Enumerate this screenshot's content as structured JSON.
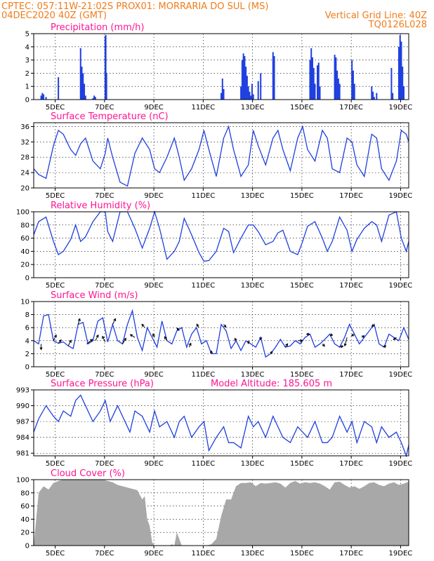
{
  "header": {
    "line1_left": "CPTEC:  057:11W-21:02S  PROX01: MORRARIA DO SUL (MS)",
    "line2_left": "04DEC2020 40Z (GMT)",
    "line2_right": "Vertical Grid Line: 40Z",
    "line3_right": "TQ0126L028"
  },
  "colors": {
    "header": "#f07c1a",
    "title": "#ff1493",
    "line": "#1f3fe0",
    "cloud": "#a8a8a8",
    "arrow": "#000000"
  },
  "x_ticks": [
    "5DEC",
    "7DEC",
    "9DEC",
    "11DEC",
    "13DEC",
    "15DEC",
    "17DEC",
    "19DEC"
  ],
  "chart_data": [
    {
      "type": "bar",
      "title": "Precipitation (mm/h)",
      "ylim": [
        0,
        5
      ],
      "yticks": [
        0,
        1,
        2,
        3,
        4,
        5
      ],
      "x": [
        4.1,
        4.15,
        4.2,
        4.3,
        4.8,
        5.7,
        5.75,
        5.8,
        5.85,
        5.9,
        6.2,
        6.25,
        6.3,
        6.7,
        6.72,
        6.75,
        11.4,
        11.45,
        11.5,
        12.2,
        12.25,
        12.3,
        12.35,
        12.4,
        12.45,
        12.5,
        12.55,
        12.6,
        12.65,
        12.7,
        12.9,
        13.0,
        13.5,
        13.55,
        15.0,
        15.05,
        15.1,
        15.15,
        15.2,
        15.3,
        15.35,
        15.4,
        16.0,
        16.05,
        16.1,
        16.15,
        16.2,
        16.7,
        16.75,
        16.8,
        17.5,
        17.55,
        17.6,
        17.7,
        18.3,
        18.35,
        18.6,
        18.65,
        18.7,
        18.75,
        18.8
      ],
      "values": [
        0.3,
        0.5,
        0.4,
        0.2,
        1.7,
        3.9,
        2.5,
        2.0,
        1.2,
        0.3,
        0.1,
        0.3,
        0.2,
        4.8,
        4.9,
        2.0,
        0.5,
        1.6,
        0.8,
        1.0,
        3.0,
        3.5,
        3.3,
        2.5,
        1.8,
        1.0,
        0.6,
        0.3,
        1.2,
        0.4,
        1.4,
        2.0,
        3.6,
        3.3,
        3.0,
        3.9,
        3.2,
        2.4,
        1.2,
        2.6,
        2.8,
        1.0,
        3.4,
        3.2,
        2.2,
        1.6,
        1.2,
        3.0,
        2.2,
        1.2,
        1.0,
        0.6,
        0.2,
        0.5,
        2.4,
        0.5,
        4.0,
        4.9,
        4.4,
        2.5,
        1.0
      ]
    },
    {
      "type": "line",
      "title": "Surface Temperature (nC)",
      "ylim": [
        20,
        37
      ],
      "yticks": [
        20,
        24,
        28,
        32,
        36
      ],
      "x": [
        3.8,
        4.0,
        4.3,
        4.6,
        4.8,
        5.0,
        5.3,
        5.5,
        5.7,
        5.9,
        6.2,
        6.5,
        6.7,
        6.8,
        7.0,
        7.3,
        7.6,
        7.9,
        8.2,
        8.5,
        8.7,
        8.9,
        9.2,
        9.5,
        9.7,
        9.9,
        10.2,
        10.5,
        10.7,
        10.9,
        11.2,
        11.5,
        11.7,
        11.9,
        12.2,
        12.5,
        12.7,
        12.9,
        13.2,
        13.5,
        13.7,
        13.9,
        14.2,
        14.5,
        14.7,
        14.9,
        15.2,
        15.5,
        15.7,
        15.9,
        16.2,
        16.5,
        16.7,
        16.9,
        17.2,
        17.5,
        17.7,
        17.9,
        18.2,
        18.5,
        18.7,
        18.9,
        19.0
      ],
      "values": [
        25,
        23.5,
        22.5,
        31,
        35,
        34,
        30,
        28.5,
        31.5,
        33,
        27,
        25,
        29,
        33,
        28,
        21.5,
        20.5,
        29,
        33,
        30,
        25,
        24,
        28,
        33,
        28,
        22,
        25,
        30,
        35,
        30,
        23,
        33,
        36,
        30,
        23,
        26,
        35,
        31,
        26,
        33,
        35,
        30,
        24.5,
        33,
        36,
        30,
        27,
        35,
        33,
        25,
        24,
        33,
        32,
        26,
        23,
        34,
        33,
        25,
        22,
        27,
        35,
        34,
        32
      ]
    },
    {
      "type": "line",
      "title": "Relative Humidity (%)",
      "ylim": [
        0,
        100
      ],
      "yticks": [
        0,
        20,
        40,
        60,
        80,
        100
      ],
      "x": [
        3.8,
        4.0,
        4.3,
        4.6,
        4.8,
        5.0,
        5.3,
        5.5,
        5.7,
        5.9,
        6.2,
        6.5,
        6.7,
        6.8,
        7.0,
        7.3,
        7.6,
        7.9,
        8.2,
        8.5,
        8.7,
        8.9,
        9.2,
        9.5,
        9.7,
        9.9,
        10.2,
        10.5,
        10.7,
        10.9,
        11.2,
        11.5,
        11.7,
        11.9,
        12.2,
        12.5,
        12.7,
        12.9,
        13.2,
        13.5,
        13.7,
        13.9,
        14.2,
        14.5,
        14.7,
        14.9,
        15.2,
        15.5,
        15.7,
        15.9,
        16.2,
        16.5,
        16.7,
        16.9,
        17.2,
        17.5,
        17.7,
        17.9,
        18.2,
        18.5,
        18.7,
        18.9,
        19.0
      ],
      "values": [
        65,
        85,
        92,
        55,
        35,
        40,
        58,
        80,
        55,
        62,
        85,
        100,
        100,
        70,
        55,
        100,
        100,
        75,
        45,
        75,
        100,
        75,
        28,
        40,
        55,
        90,
        65,
        38,
        25,
        26,
        40,
        75,
        70,
        38,
        60,
        80,
        80,
        70,
        50,
        55,
        68,
        72,
        40,
        35,
        55,
        78,
        85,
        60,
        40,
        55,
        92,
        72,
        40,
        58,
        75,
        85,
        80,
        55,
        95,
        100,
        60,
        40,
        55
      ]
    },
    {
      "type": "line",
      "title": "Surface Wind (m/s)",
      "ylim": [
        0,
        10
      ],
      "yticks": [
        0,
        2,
        4,
        6,
        8,
        10
      ],
      "x": [
        3.8,
        4.0,
        4.2,
        4.4,
        4.6,
        4.8,
        5.0,
        5.2,
        5.4,
        5.6,
        5.8,
        6.0,
        6.2,
        6.4,
        6.6,
        6.8,
        7.0,
        7.2,
        7.4,
        7.6,
        7.8,
        8.0,
        8.2,
        8.4,
        8.6,
        8.8,
        9.0,
        9.2,
        9.4,
        9.6,
        9.8,
        10.0,
        10.2,
        10.4,
        10.6,
        10.8,
        11.0,
        11.2,
        11.4,
        11.6,
        11.8,
        12.0,
        12.2,
        12.4,
        12.6,
        12.8,
        13.0,
        13.2,
        13.4,
        13.6,
        13.8,
        14.0,
        14.2,
        14.4,
        14.6,
        14.8,
        15.0,
        15.2,
        15.4,
        15.6,
        15.8,
        16.0,
        16.2,
        16.4,
        16.6,
        16.8,
        17.0,
        17.2,
        17.4,
        17.6,
        17.8,
        18.0,
        18.2,
        18.4,
        18.6,
        18.8,
        19.0
      ],
      "values": [
        4,
        3.5,
        7.8,
        8,
        4,
        3.6,
        3.8,
        3.2,
        2.8,
        6.5,
        6.8,
        3.5,
        4,
        7,
        7.5,
        3.8,
        6.5,
        4,
        3.5,
        6.5,
        8.6,
        4.5,
        2.5,
        6,
        4.5,
        3,
        7,
        4,
        3.5,
        5.5,
        6,
        3,
        5,
        6,
        3.5,
        4,
        2,
        2,
        6.5,
        5.5,
        2.8,
        4,
        2.5,
        4,
        3.5,
        3,
        4.5,
        1.5,
        2,
        3,
        4.2,
        3,
        3.2,
        4,
        3.5,
        4.5,
        5,
        3,
        3.5,
        4.2,
        5,
        3.5,
        3,
        4.5,
        6.5,
        5,
        3.5,
        4.5,
        5.5,
        6.5,
        3.5,
        3,
        5,
        4.5,
        4,
        6,
        4.2
      ],
      "vectors": [
        {
          "x": 4.1,
          "u": 0,
          "v": -1
        },
        {
          "x": 4.6,
          "u": 0.5,
          "v": 1
        },
        {
          "x": 4.8,
          "u": 0.5,
          "v": 0.6
        },
        {
          "x": 5.2,
          "u": 0.5,
          "v": 1
        },
        {
          "x": 5.6,
          "u": 0.3,
          "v": 1
        },
        {
          "x": 5.95,
          "u": 1,
          "v": 0.8
        },
        {
          "x": 6.3,
          "u": 0.5,
          "v": 1
        },
        {
          "x": 6.7,
          "u": -0.5,
          "v": 1
        },
        {
          "x": 7.0,
          "u": 0.5,
          "v": 1
        },
        {
          "x": 7.4,
          "u": 0.6,
          "v": 1
        },
        {
          "x": 7.9,
          "u": -0.8,
          "v": 0.5
        },
        {
          "x": 8.3,
          "u": -0.5,
          "v": 0.6
        },
        {
          "x": 8.7,
          "u": -0.3,
          "v": 0.6
        },
        {
          "x": 9.2,
          "u": -0.4,
          "v": 0.7
        },
        {
          "x": 9.7,
          "u": -0.4,
          "v": 0.5
        },
        {
          "x": 10.1,
          "u": 0.3,
          "v": 0.7
        },
        {
          "x": 10.5,
          "u": -0.4,
          "v": 0.6
        },
        {
          "x": 11.0,
          "u": 0,
          "v": 0.5
        },
        {
          "x": 11.5,
          "u": 0.4,
          "v": -0.5
        },
        {
          "x": 12.0,
          "u": -0.2,
          "v": 0.4
        },
        {
          "x": 12.5,
          "u": 0,
          "v": -0.5
        },
        {
          "x": 13.0,
          "u": 0,
          "v": -0.4
        },
        {
          "x": 13.4,
          "u": 0.3,
          "v": 0.4
        },
        {
          "x": 14.0,
          "u": 0.4,
          "v": 0.6
        },
        {
          "x": 14.5,
          "u": 0.8,
          "v": 0
        },
        {
          "x": 15.0,
          "u": -0.6,
          "v": 0
        },
        {
          "x": 15.5,
          "u": 0.4,
          "v": -0.4
        },
        {
          "x": 15.9,
          "u": -0.3,
          "v": -0.3
        },
        {
          "x": 16.2,
          "u": 0.6,
          "v": 0.2
        },
        {
          "x": 16.5,
          "u": -0.4,
          "v": -1.5
        },
        {
          "x": 16.8,
          "u": -0.5,
          "v": -0.3
        },
        {
          "x": 17.1,
          "u": 0.4,
          "v": 0.3
        },
        {
          "x": 17.6,
          "u": -0.4,
          "v": -0.4
        },
        {
          "x": 18.0,
          "u": 0.3,
          "v": 0.3
        },
        {
          "x": 18.5,
          "u": -0.5,
          "v": -0.4
        }
      ]
    },
    {
      "type": "line",
      "title": "Surface Pressure (hPa)",
      "annotation": "Model Altitude: 185.605 m",
      "ylim": [
        980.5,
        993
      ],
      "yticks": [
        981,
        984,
        987,
        990,
        993
      ],
      "x": [
        3.8,
        4.0,
        4.3,
        4.6,
        4.8,
        5.0,
        5.3,
        5.5,
        5.7,
        5.9,
        6.2,
        6.5,
        6.7,
        6.9,
        7.2,
        7.5,
        7.7,
        7.9,
        8.2,
        8.5,
        8.7,
        8.9,
        9.2,
        9.5,
        9.7,
        9.9,
        10.2,
        10.5,
        10.7,
        10.9,
        11.2,
        11.5,
        11.7,
        11.9,
        12.2,
        12.5,
        12.7,
        12.9,
        13.2,
        13.5,
        13.7,
        13.9,
        14.2,
        14.5,
        14.7,
        14.9,
        15.2,
        15.5,
        15.7,
        15.9,
        16.2,
        16.5,
        16.7,
        16.9,
        17.2,
        17.5,
        17.7,
        17.9,
        18.2,
        18.5,
        18.7,
        18.9,
        19.0
      ],
      "values": [
        985,
        987.5,
        990,
        988,
        987,
        989,
        988,
        991,
        992,
        990,
        987,
        989,
        991,
        987,
        990,
        987,
        985,
        989,
        988,
        985,
        989,
        986,
        987,
        984,
        987,
        988,
        984,
        986,
        987,
        981.5,
        984,
        986,
        983,
        983,
        982,
        988,
        986,
        987,
        984,
        988,
        986,
        984,
        983,
        986,
        985,
        984,
        987,
        983,
        983,
        984,
        988,
        985,
        987,
        983,
        987,
        986,
        983,
        986,
        984,
        985,
        983,
        980.5,
        982.5
      ]
    },
    {
      "type": "area",
      "title": "Cloud Cover (%)",
      "ylim": [
        0,
        100
      ],
      "yticks": [
        0,
        20,
        40,
        60,
        80,
        100
      ],
      "x": [
        3.8,
        4.0,
        4.2,
        4.4,
        4.6,
        4.8,
        5.0,
        5.2,
        5.4,
        5.6,
        5.8,
        6.0,
        6.2,
        6.4,
        6.6,
        6.8,
        7.0,
        7.2,
        7.4,
        7.6,
        7.8,
        8.0,
        8.2,
        8.3,
        8.4,
        8.5,
        8.6,
        8.7,
        8.8,
        8.9,
        9.0,
        9.1,
        9.2,
        9.3,
        9.4,
        9.5,
        9.6,
        9.8,
        10.0,
        10.2,
        10.4,
        10.6,
        10.8,
        11.0,
        11.2,
        11.4,
        11.6,
        11.8,
        12.0,
        12.2,
        12.4,
        12.6,
        12.8,
        13.0,
        13.2,
        13.4,
        13.6,
        13.8,
        14.0,
        14.2,
        14.4,
        14.6,
        14.8,
        15.0,
        15.2,
        15.4,
        15.6,
        15.8,
        16.0,
        16.2,
        16.4,
        16.6,
        16.8,
        17.0,
        17.2,
        17.4,
        17.6,
        17.8,
        18.0,
        18.2,
        18.4,
        18.6,
        18.8,
        19.0
      ],
      "values": [
        0,
        80,
        90,
        85,
        95,
        98,
        100,
        100,
        100,
        100,
        100,
        100,
        100,
        100,
        100,
        98,
        96,
        92,
        90,
        88,
        86,
        84,
        70,
        75,
        40,
        30,
        5,
        0,
        0,
        0,
        0,
        0,
        0,
        0,
        2,
        0,
        20,
        0,
        0,
        0,
        0,
        0,
        0,
        2,
        10,
        45,
        70,
        70,
        90,
        95,
        95,
        96,
        90,
        95,
        94,
        95,
        96,
        94,
        88,
        95,
        98,
        94,
        96,
        95,
        96,
        94,
        90,
        85,
        96,
        97,
        92,
        88,
        90,
        86,
        90,
        95,
        96,
        92,
        90,
        94,
        96,
        92,
        94,
        97
      ]
    }
  ]
}
